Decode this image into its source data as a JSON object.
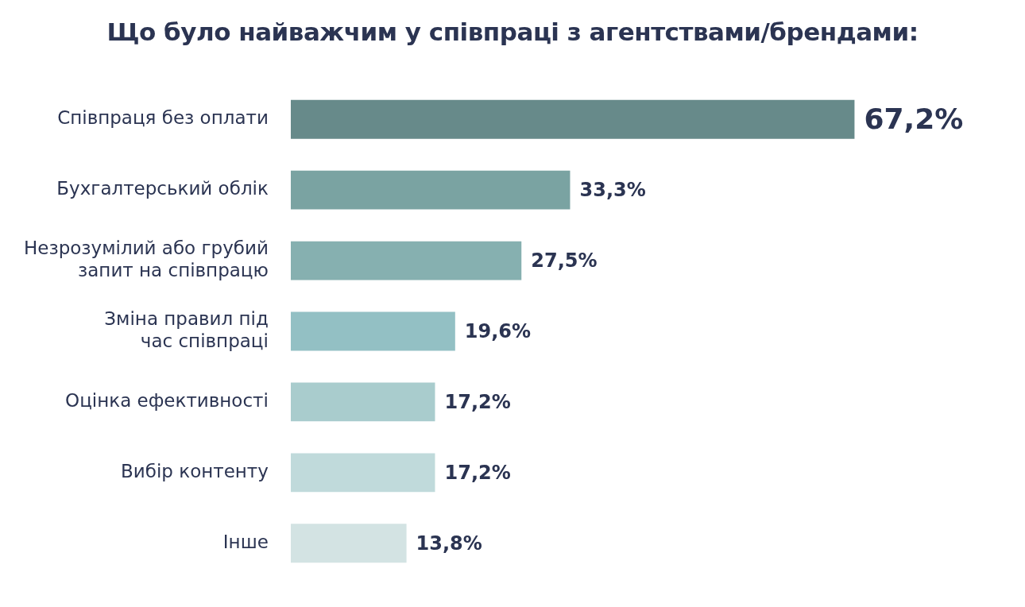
{
  "chart_data": {
    "type": "bar",
    "orientation": "horizontal",
    "title": "Що було найважчим у співпраці з агентствами/брендами:",
    "categories": [
      "Співпраця без оплати",
      "Бухгалтерський облік",
      "Незрозумілий або грубий запит на співпрацю",
      "Зміна правил під час співпраці",
      "Оцінка ефективності",
      "Вибір контенту",
      "Інше"
    ],
    "values": [
      67.2,
      33.3,
      27.5,
      19.6,
      17.2,
      17.2,
      13.8
    ],
    "value_labels": [
      "67,2%",
      "33,3%",
      "27,5%",
      "19,6%",
      "17,2%",
      "17,2%",
      "13,8%"
    ],
    "colors": [
      "#678a8a",
      "#7aa3a2",
      "#86b0b0",
      "#93c0c4",
      "#a9cccd",
      "#c0dadb",
      "#d3e3e3"
    ],
    "legend": false
  }
}
